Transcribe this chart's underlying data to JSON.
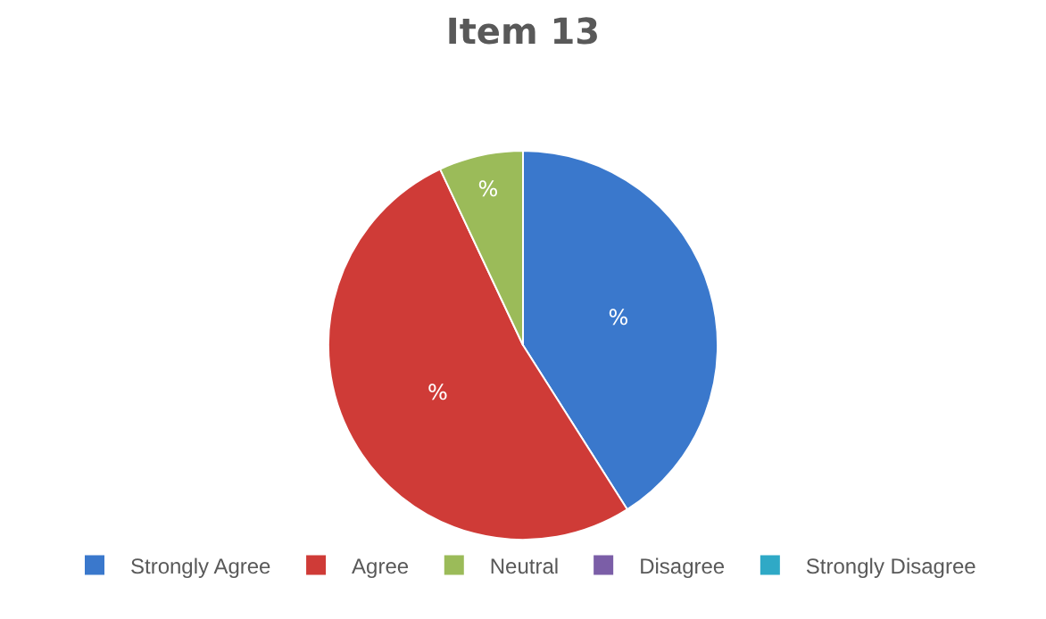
{
  "chart_data": {
    "type": "pie",
    "title": "Item 13",
    "categories": [
      "Strongly Agree",
      "Agree",
      "Neutral",
      "Disagree",
      "Strongly Disagree"
    ],
    "values": [
      41,
      52,
      7,
      0,
      0
    ],
    "colors": [
      "#3a78cc",
      "#cf3b37",
      "#9bbb59",
      "#7b5ea7",
      "#2fa9c6"
    ],
    "value_labels": [
      "%",
      "%",
      "%",
      null,
      null
    ],
    "legend": "bottom"
  }
}
